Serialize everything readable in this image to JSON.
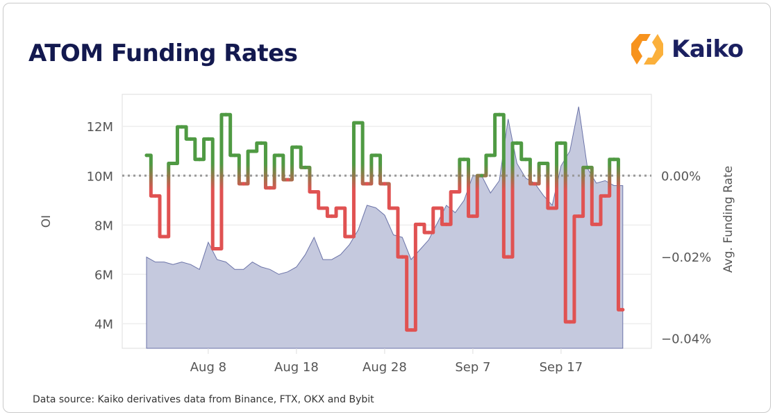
{
  "title": "ATOM Funding Rates",
  "logo": {
    "text": "Kaiko",
    "colors": {
      "mark": "#f7931e",
      "text": "#1b2060"
    }
  },
  "footer": "Data source: Kaiko derivatives data from Binance, FTX, OKX and Bybit",
  "chart_data": {
    "type": "line",
    "title": "ATOM Funding Rates",
    "xlabel": "",
    "y_left_label": "OI",
    "y_right_label": "Avg. Funding Rate",
    "x_ticks": [
      "Aug 8",
      "Aug 18",
      "Aug 28",
      "Sep 7",
      "Sep 17"
    ],
    "y_left_ticks": [
      "4M",
      "6M",
      "8M",
      "10M",
      "12M"
    ],
    "y_left_tick_values": [
      4,
      6,
      8,
      10,
      12
    ],
    "y_right_ticks": [
      "0.00%",
      "−0.02%",
      "−0.04%"
    ],
    "y_right_tick_values": [
      0,
      -0.02,
      -0.04
    ],
    "y_left_range_millions": [
      3,
      13.3
    ],
    "y_right_range_percent": [
      -0.0425,
      0.02
    ],
    "grid": true,
    "zero_line": "dotted",
    "x": [
      "Aug 1",
      "Aug 2",
      "Aug 3",
      "Aug 4",
      "Aug 5",
      "Aug 6",
      "Aug 7",
      "Aug 8",
      "Aug 9",
      "Aug 10",
      "Aug 11",
      "Aug 12",
      "Aug 13",
      "Aug 14",
      "Aug 15",
      "Aug 16",
      "Aug 17",
      "Aug 18",
      "Aug 19",
      "Aug 20",
      "Aug 21",
      "Aug 22",
      "Aug 23",
      "Aug 24",
      "Aug 25",
      "Aug 26",
      "Aug 27",
      "Aug 28",
      "Aug 29",
      "Aug 30",
      "Aug 31",
      "Sep 1",
      "Sep 2",
      "Sep 3",
      "Sep 4",
      "Sep 5",
      "Sep 6",
      "Sep 7",
      "Sep 8",
      "Sep 9",
      "Sep 10",
      "Sep 11",
      "Sep 12",
      "Sep 13",
      "Sep 14",
      "Sep 15",
      "Sep 16",
      "Sep 17",
      "Sep 18",
      "Sep 19",
      "Sep 20",
      "Sep 21",
      "Sep 22",
      "Sep 23",
      "Sep 24"
    ],
    "series": [
      {
        "kind": "area",
        "axis": "left",
        "unit": "M",
        "color": "#c5c9de",
        "line_color": "#6b73a8",
        "values": [
          6.7,
          6.5,
          6.5,
          6.4,
          6.5,
          6.4,
          6.2,
          7.3,
          6.6,
          6.5,
          6.2,
          6.2,
          6.5,
          6.3,
          6.2,
          6.0,
          6.1,
          6.3,
          6.8,
          7.5,
          6.6,
          6.6,
          6.8,
          7.2,
          7.8,
          8.8,
          8.7,
          8.4,
          7.6,
          7.5,
          6.6,
          7.0,
          7.4,
          8.1,
          8.8,
          8.5,
          9.0,
          10.0,
          10.0,
          9.3,
          9.8,
          12.3,
          10.5,
          9.9,
          9.7,
          9.2,
          8.8,
          10.4,
          11.0,
          12.8,
          10.3,
          9.7,
          9.8,
          9.6,
          9.6
        ]
      },
      {
        "kind": "line",
        "axis": "right",
        "unit": "%",
        "positive_color": "#4f9a43",
        "negative_color": "#e05252",
        "values": [
          0.005,
          -0.005,
          -0.015,
          0.003,
          0.012,
          0.009,
          0.004,
          0.009,
          -0.018,
          0.015,
          0.005,
          -0.002,
          0.006,
          0.008,
          -0.003,
          0.005,
          -0.001,
          0.007,
          0.002,
          -0.004,
          -0.008,
          -0.01,
          -0.008,
          -0.015,
          0.013,
          -0.002,
          0.005,
          -0.002,
          -0.008,
          -0.02,
          -0.038,
          -0.012,
          -0.014,
          -0.008,
          -0.012,
          -0.004,
          0.004,
          -0.01,
          0.0,
          0.005,
          0.015,
          -0.02,
          0.008,
          0.004,
          -0.002,
          0.003,
          -0.008,
          0.008,
          -0.036,
          -0.01,
          0.002,
          -0.012,
          -0.005,
          0.004,
          -0.033
        ]
      }
    ]
  }
}
